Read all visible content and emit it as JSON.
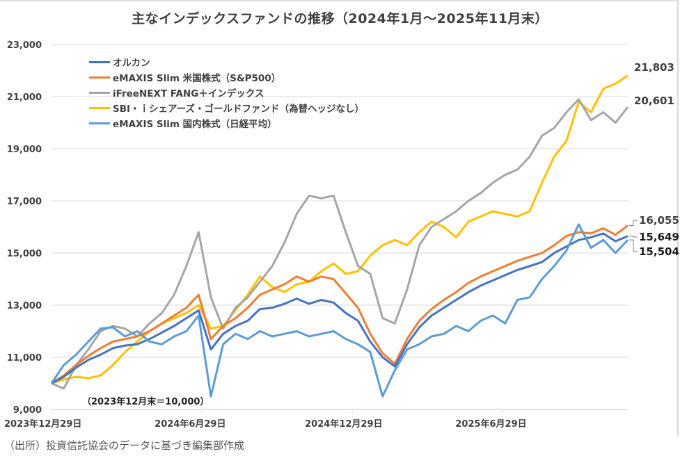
{
  "chart_data": {
    "type": "line",
    "title": "主なインデックスファンドの推移（2024年1月～2025年11月末）",
    "xlabel": "",
    "ylabel": "",
    "ylim": [
      9000,
      23000
    ],
    "yticks": [
      "23,000",
      "21,000",
      "19,000",
      "17,000",
      "15,000",
      "13,000",
      "11,000",
      "9,000"
    ],
    "ytick_values": [
      23000,
      21000,
      19000,
      17000,
      15000,
      13000,
      11000,
      9000
    ],
    "xticks": [
      "2023年12月29日",
      "2024年6月29日",
      "2024年12月29日",
      "2025年6月29日"
    ],
    "xtick_positions": [
      0,
      12.27,
      24.53,
      36.8
    ],
    "x_range": [
      0,
      47
    ],
    "x_note": "semi-monthly points from 2023-12-29 to 2025-11-28",
    "grid": true,
    "legend_position": "top-left",
    "annotation": "（2023年12月末＝10,000）",
    "series": [
      {
        "name": "オルカン",
        "color": "#4472c4",
        "end_label": "15,649",
        "values": [
          10000,
          10250,
          10600,
          10900,
          11100,
          11350,
          11450,
          11500,
          11700,
          11950,
          12200,
          12500,
          12800,
          11300,
          11900,
          12200,
          12400,
          12850,
          12900,
          13050,
          13250,
          13050,
          13200,
          13100,
          12700,
          12400,
          11600,
          11000,
          10650,
          11500,
          12150,
          12600,
          12900,
          13200,
          13500,
          13750,
          13950,
          14150,
          14350,
          14500,
          14650,
          15000,
          15250,
          15500,
          15600,
          15750,
          15450,
          15649
        ]
      },
      {
        "name": "eMAXIS Slim 米国株式（S&P500）",
        "color": "#ed7d31",
        "end_label": "16,055",
        "values": [
          10000,
          10300,
          10700,
          11050,
          11350,
          11600,
          11700,
          11800,
          12000,
          12300,
          12600,
          12900,
          13400,
          11700,
          12200,
          12500,
          12900,
          13400,
          13600,
          13800,
          14100,
          13900,
          14100,
          14000,
          13450,
          12900,
          11900,
          11150,
          10750,
          11700,
          12400,
          12850,
          13200,
          13500,
          13850,
          14100,
          14300,
          14500,
          14700,
          14850,
          15000,
          15300,
          15650,
          15800,
          15750,
          15950,
          15700,
          16055
        ]
      },
      {
        "name": "iFreeNEXT FANG＋インデックス",
        "color": "#a5a5a5",
        "end_label": "20,601",
        "values": [
          10000,
          9800,
          10700,
          11300,
          12000,
          12200,
          12100,
          11800,
          12300,
          12700,
          13400,
          14500,
          15800,
          13300,
          12100,
          12900,
          13300,
          13900,
          14500,
          15400,
          16500,
          17200,
          17100,
          17200,
          15800,
          14500,
          14200,
          12500,
          12300,
          13600,
          15300,
          16000,
          16300,
          16600,
          17000,
          17300,
          17700,
          18000,
          18200,
          18700,
          19500,
          19800,
          20400,
          20900,
          20100,
          20400,
          20000,
          20601
        ]
      },
      {
        "name": "SBI・ｉシェアーズ・ゴールドファンド（為替ヘッジなし）",
        "color": "#ffc000",
        "end_label": "21,803",
        "values": [
          10000,
          10150,
          10250,
          10200,
          10300,
          10700,
          11200,
          11600,
          12000,
          12300,
          12500,
          12700,
          13000,
          12100,
          12200,
          12800,
          13400,
          14100,
          13700,
          13500,
          13800,
          13900,
          14300,
          14600,
          14200,
          14300,
          14900,
          15300,
          15500,
          15300,
          15800,
          16200,
          16000,
          15600,
          16200,
          16400,
          16600,
          16500,
          16400,
          16600,
          17700,
          18700,
          19300,
          20800,
          20400,
          21300,
          21500,
          21803
        ]
      },
      {
        "name": "eMAXIS Slim 国内株式（日経平均）",
        "color": "#5b9bd5",
        "end_label": "15,504",
        "values": [
          10000,
          10700,
          11100,
          11600,
          12100,
          12150,
          11800,
          12000,
          11600,
          11500,
          11800,
          12000,
          12600,
          9500,
          11500,
          11900,
          11700,
          12000,
          11800,
          11900,
          12000,
          11800,
          11900,
          12000,
          11700,
          11500,
          11200,
          9500,
          10500,
          11300,
          11500,
          11800,
          11900,
          12200,
          12000,
          12400,
          12600,
          12300,
          13200,
          13300,
          14000,
          14500,
          15100,
          16100,
          15200,
          15500,
          15000,
          15504
        ]
      }
    ]
  },
  "footer": {
    "source": "（出所）投資信託協会のデータに基づき編集部作成"
  }
}
